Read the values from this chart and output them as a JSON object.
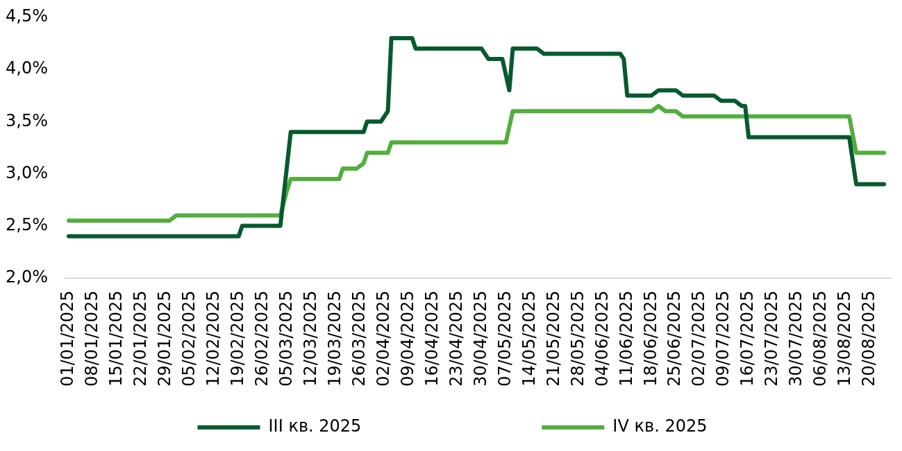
{
  "chart_data": {
    "type": "line",
    "line_style": "solid",
    "legend": "bottom",
    "xlim": [
      "2024-12-31",
      "2025-08-26"
    ],
    "xticks": [
      {
        "value": "2025-01-01",
        "label": "01/01/2025"
      },
      {
        "value": "2025-01-08",
        "label": "08/01/2025"
      },
      {
        "value": "2025-01-15",
        "label": "15/01/2025"
      },
      {
        "value": "2025-01-22",
        "label": "22/01/2025"
      },
      {
        "value": "2025-01-29",
        "label": "29/01/2025"
      },
      {
        "value": "2025-02-05",
        "label": "05/02/2025"
      },
      {
        "value": "2025-02-12",
        "label": "12/02/2025"
      },
      {
        "value": "2025-02-19",
        "label": "19/02/2025"
      },
      {
        "value": "2025-02-26",
        "label": "26/02/2025"
      },
      {
        "value": "2025-03-05",
        "label": "05/03/2025"
      },
      {
        "value": "2025-03-12",
        "label": "12/03/2025"
      },
      {
        "value": "2025-03-19",
        "label": "19/03/2025"
      },
      {
        "value": "2025-03-26",
        "label": "26/03/2025"
      },
      {
        "value": "2025-04-02",
        "label": "02/04/2025"
      },
      {
        "value": "2025-04-09",
        "label": "09/04/2025"
      },
      {
        "value": "2025-04-16",
        "label": "16/04/2025"
      },
      {
        "value": "2025-04-23",
        "label": "23/04/2025"
      },
      {
        "value": "2025-04-30",
        "label": "30/04/2025"
      },
      {
        "value": "2025-05-07",
        "label": "07/05/2025"
      },
      {
        "value": "2025-05-14",
        "label": "14/05/2025"
      },
      {
        "value": "2025-05-21",
        "label": "21/05/2025"
      },
      {
        "value": "2025-05-28",
        "label": "28/05/2025"
      },
      {
        "value": "2025-06-04",
        "label": "04/06/2025"
      },
      {
        "value": "2025-06-11",
        "label": "11/06/2025"
      },
      {
        "value": "2025-06-18",
        "label": "18/06/2025"
      },
      {
        "value": "2025-06-25",
        "label": "25/06/2025"
      },
      {
        "value": "2025-07-02",
        "label": "02/07/2025"
      },
      {
        "value": "2025-07-09",
        "label": "09/07/2025"
      },
      {
        "value": "2025-07-16",
        "label": "16/07/2025"
      },
      {
        "value": "2025-07-23",
        "label": "23/07/2025"
      },
      {
        "value": "2025-07-30",
        "label": "30/07/2025"
      },
      {
        "value": "2025-08-06",
        "label": "06/08/2025"
      },
      {
        "value": "2025-08-13",
        "label": "13/08/2025"
      },
      {
        "value": "2025-08-20",
        "label": "20/08/2025"
      }
    ],
    "ylim": [
      2,
      4.5
    ],
    "yticks": [
      {
        "value": 2,
        "label": "2,0%"
      },
      {
        "value": 2.5,
        "label": "2,5%"
      },
      {
        "value": 3,
        "label": "3,0%"
      },
      {
        "value": 3.5,
        "label": "3,5%"
      },
      {
        "value": 4,
        "label": "4,0%"
      },
      {
        "value": 4.5,
        "label": "4,5%"
      }
    ],
    "series": [
      {
        "name": "III кв. 2025",
        "color": "#07592e",
        "x": [
          "2025-01-01",
          "2025-02-19",
          "2025-02-20",
          "2025-03-03",
          "2025-03-06",
          "2025-03-27",
          "2025-03-28",
          "2025-04-01",
          "2025-04-03",
          "2025-04-04",
          "2025-04-10",
          "2025-04-11",
          "2025-04-30",
          "2025-05-02",
          "2025-05-06",
          "2025-05-08",
          "2025-05-09",
          "2025-05-16",
          "2025-05-18",
          "2025-06-09",
          "2025-06-10",
          "2025-06-11",
          "2025-06-18",
          "2025-06-20",
          "2025-06-25",
          "2025-06-27",
          "2025-07-06",
          "2025-07-08",
          "2025-07-12",
          "2025-07-14",
          "2025-07-15",
          "2025-07-16",
          "2025-08-14",
          "2025-08-16",
          "2025-08-24"
        ],
        "values": [
          2.4,
          2.4,
          2.5,
          2.5,
          3.4,
          3.4,
          3.5,
          3.5,
          3.6,
          4.3,
          4.3,
          4.2,
          4.2,
          4.1,
          4.1,
          3.8,
          4.2,
          4.2,
          4.15,
          4.15,
          4.1,
          3.75,
          3.75,
          3.8,
          3.8,
          3.75,
          3.75,
          3.7,
          3.7,
          3.65,
          3.65,
          3.35,
          3.35,
          2.9,
          2.9
        ]
      },
      {
        "name": "IV кв. 2025",
        "color": "#53ae3e",
        "x": [
          "2025-01-01",
          "2025-01-30",
          "2025-02-01",
          "2025-03-03",
          "2025-03-05",
          "2025-03-06",
          "2025-03-20",
          "2025-03-21",
          "2025-03-25",
          "2025-03-27",
          "2025-03-28",
          "2025-04-03",
          "2025-04-04",
          "2025-05-07",
          "2025-05-09",
          "2025-06-18",
          "2025-06-20",
          "2025-06-22",
          "2025-06-25",
          "2025-06-27",
          "2025-08-14",
          "2025-08-16",
          "2025-08-24"
        ],
        "values": [
          2.55,
          2.55,
          2.6,
          2.6,
          2.85,
          2.95,
          2.95,
          3.05,
          3.05,
          3.1,
          3.2,
          3.2,
          3.3,
          3.3,
          3.6,
          3.6,
          3.65,
          3.6,
          3.6,
          3.55,
          3.55,
          3.2,
          3.2
        ]
      }
    ]
  }
}
